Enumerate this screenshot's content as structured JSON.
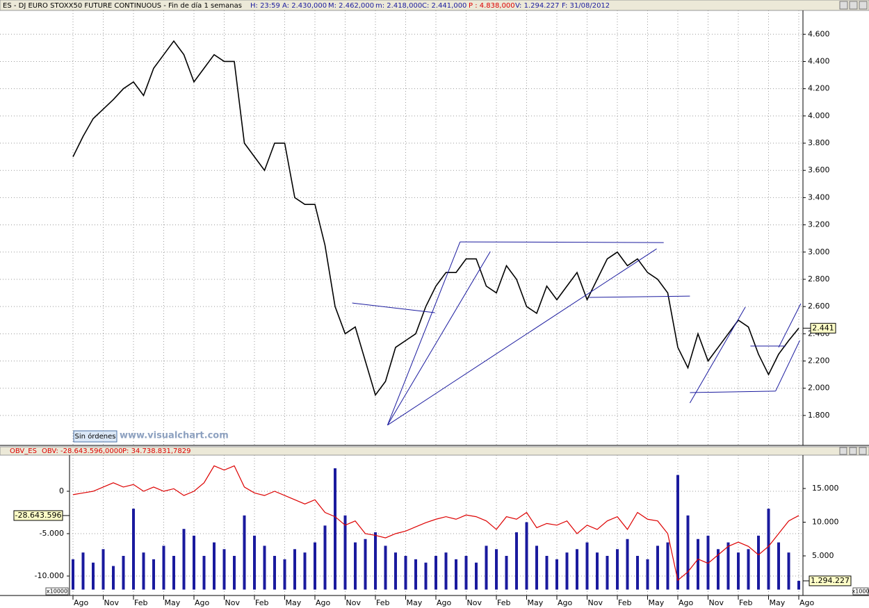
{
  "window": {
    "header_parts": [
      "ES - DJ EURO STOXX50 FUTURE CONTINUOUS - Fin de día 1 semanas",
      "H: 23:59",
      "A: 2.430,000",
      "M: 2.462,000",
      "m: 2.418,000",
      "C: 2.441,000",
      "P : 4.838,000",
      "V: 1.294.227",
      "F: 31/08/2012"
    ],
    "obv_header_parts": [
      "OBV: -28.643.596,0000",
      "P: 34.738.831,7829"
    ],
    "watermark": "www.visualchart.com",
    "button": "Sin órdenes"
  },
  "chart_data": [
    {
      "type": "line",
      "categories": [
        "Ago",
        null,
        null,
        "Nov",
        null,
        null,
        "Feb",
        null,
        null,
        "May",
        null,
        null,
        "Ago",
        null,
        null,
        "Nov",
        null,
        null,
        "Feb",
        null,
        null,
        "May",
        null,
        null,
        "Ago",
        null,
        null,
        "Nov",
        null,
        null,
        "Feb",
        null,
        null,
        "May",
        null,
        null,
        "Ago",
        null,
        null,
        "Nov",
        null,
        null,
        "Feb",
        null,
        null,
        "May",
        null,
        null,
        "Ago",
        null,
        null,
        "Nov",
        null,
        null,
        "Feb",
        null,
        null,
        "May",
        null,
        null,
        "Ago",
        null,
        null,
        "Nov",
        null,
        null,
        "Feb",
        null,
        null,
        "May",
        null,
        null,
        "Ago"
      ],
      "series": [
        {
          "name": "ES",
          "color": "#000000",
          "values": [
            3700,
            3850,
            3980,
            4050,
            4120,
            4200,
            4250,
            4150,
            4350,
            4450,
            4550,
            4450,
            4250,
            4350,
            4450,
            4400,
            4400,
            3800,
            3700,
            3600,
            3800,
            3800,
            3400,
            3350,
            3350,
            3050,
            2600,
            2400,
            2450,
            2200,
            1950,
            2050,
            2300,
            2350,
            2400,
            2600,
            2750,
            2850,
            2850,
            2950,
            2950,
            2750,
            2700,
            2900,
            2800,
            2600,
            2550,
            2750,
            2650,
            2750,
            2850,
            2650,
            2800,
            2950,
            3000,
            2900,
            2950,
            2850,
            2800,
            2700,
            2300,
            2150,
            2400,
            2200,
            2300,
            2400,
            2500,
            2450,
            2250,
            2100,
            2250,
            2350,
            2441
          ]
        }
      ],
      "ylim": [
        1580,
        4775
      ],
      "yticks": [
        {
          "value": 1800,
          "label": "1.800"
        },
        {
          "value": 2000,
          "label": "2.000"
        },
        {
          "value": 2200,
          "label": "2.200"
        },
        {
          "value": 2400,
          "label": "2.400"
        },
        {
          "value": 2600,
          "label": "2.600"
        },
        {
          "value": 2800,
          "label": "2.800"
        },
        {
          "value": 3000,
          "label": "3.000"
        },
        {
          "value": 3200,
          "label": "3.200"
        },
        {
          "value": 3400,
          "label": "3.400"
        },
        {
          "value": 3600,
          "label": "3.600"
        },
        {
          "value": 3800,
          "label": "3.800"
        },
        {
          "value": 4000,
          "label": "4.000"
        },
        {
          "value": 4200,
          "label": "4.200"
        },
        {
          "value": 4400,
          "label": "4.400"
        },
        {
          "value": 4600,
          "label": "4.600"
        }
      ],
      "last_label": {
        "value": 2441,
        "label": "2.441"
      },
      "trend_color": "#1a1a9e",
      "trendlines": [
        {
          "x": [
            27.7,
            35.9
          ],
          "y": [
            2626,
            2555
          ]
        },
        {
          "x": [
            31.2,
            38.4
          ],
          "y": [
            1729,
            3075
          ]
        },
        {
          "x": [
            31.2,
            41.4
          ],
          "y": [
            1729,
            3004
          ]
        },
        {
          "x": [
            31.2,
            57.9
          ],
          "y": [
            1729,
            3024
          ]
        },
        {
          "x": [
            38.4,
            58.6
          ],
          "y": [
            3075,
            3070
          ]
        },
        {
          "x": [
            51.2,
            61.2
          ],
          "y": [
            2667,
            2677
          ]
        },
        {
          "x": [
            61.2,
            66.7
          ],
          "y": [
            1892,
            2596
          ]
        },
        {
          "x": [
            61.2,
            69.7
          ],
          "y": [
            1968,
            1979
          ]
        },
        {
          "x": [
            69.7,
            72.1
          ],
          "y": [
            1979,
            2351
          ]
        },
        {
          "x": [
            70,
            72.2
          ],
          "y": [
            2300,
            2621
          ]
        },
        {
          "x": [
            67.2,
            70.7
          ],
          "y": [
            2310,
            2310
          ]
        }
      ],
      "grid": true
    },
    {
      "type": "obv",
      "categories": [
        "Ago",
        null,
        null,
        "Nov",
        null,
        null,
        "Feb",
        null,
        null,
        "May",
        null,
        null,
        "Ago",
        null,
        null,
        "Nov",
        null,
        null,
        "Feb",
        null,
        null,
        "May",
        null,
        null,
        "Ago",
        null,
        null,
        "Nov",
        null,
        null,
        "Feb",
        null,
        null,
        "May",
        null,
        null,
        "Ago",
        null,
        null,
        "Nov",
        null,
        null,
        "Feb",
        null,
        null,
        "May",
        null,
        null,
        "Ago",
        null,
        null,
        "Nov",
        null,
        null,
        "Feb",
        null,
        null,
        "May",
        null,
        null,
        "Ago",
        null,
        null,
        "Nov",
        null,
        null,
        "Feb",
        null,
        null,
        "May",
        null,
        null,
        "Ago"
      ],
      "series": [
        {
          "name": "OBV_ES",
          "color": "#dd0000",
          "values": [
            -400,
            -200,
            0,
            500,
            1000,
            500,
            800,
            0,
            500,
            0,
            300,
            -500,
            0,
            1000,
            3000,
            2500,
            3000,
            500,
            -200,
            -500,
            0,
            -500,
            -1000,
            -1500,
            -1000,
            -2500,
            -3000,
            -4000,
            -3500,
            -5000,
            -5200,
            -5500,
            -5000,
            -4700,
            -4200,
            -3700,
            -3300,
            -3000,
            -3300,
            -2800,
            -3000,
            -3500,
            -4500,
            -3000,
            -3300,
            -2500,
            -4300,
            -3800,
            -4000,
            -3500,
            -5000,
            -4000,
            -4500,
            -3500,
            -3000,
            -4500,
            -2500,
            -3300,
            -3500,
            -5000,
            -10500,
            -9500,
            -8000,
            -8500,
            -7500,
            -6500,
            -6000,
            -6500,
            -7500,
            -6500,
            -5000,
            -3500,
            -2864.3596
          ]
        },
        {
          "color": "#1a1a9e",
          "axis": "y2",
          "values": [
            4500,
            5500,
            4000,
            6000,
            3500,
            5000,
            12000,
            5500,
            4500,
            6500,
            5000,
            9000,
            8000,
            5000,
            7000,
            6000,
            5000,
            11000,
            8000,
            6500,
            5000,
            4500,
            6000,
            5500,
            7000,
            9500,
            18000,
            11000,
            7000,
            7500,
            8500,
            6500,
            5500,
            5000,
            4500,
            4000,
            5000,
            5500,
            4500,
            5000,
            4000,
            6500,
            6000,
            5000,
            8500,
            10000,
            6500,
            5000,
            4500,
            5500,
            6000,
            7000,
            5500,
            5000,
            6000,
            7500,
            5000,
            4500,
            6500,
            7000,
            17000,
            11000,
            7500,
            8000,
            6000,
            7000,
            5500,
            6000,
            8000,
            12000,
            7000,
            5500,
            1294.227
          ]
        }
      ],
      "ylim": [
        -12295,
        4262
      ],
      "yticks": [
        {
          "value": -10000,
          "label": "-10.000"
        },
        {
          "value": -5000,
          "label": "-5.000"
        },
        0
      ],
      "y2lim": [
        -876,
        19948
      ],
      "y2ticks": [
        {
          "value": 5000,
          "label": "5.000"
        },
        {
          "value": 10000,
          "label": "10.000"
        },
        {
          "value": 15000,
          "label": "15.000"
        }
      ],
      "y_unit": "x10000",
      "y2_unit": "x1000",
      "last_label": {
        "value": -2864.3596,
        "label": "-28.643.596"
      },
      "last_label_y2": {
        "value": 1294.227,
        "label": "1.294.227"
      },
      "grid": true
    }
  ]
}
